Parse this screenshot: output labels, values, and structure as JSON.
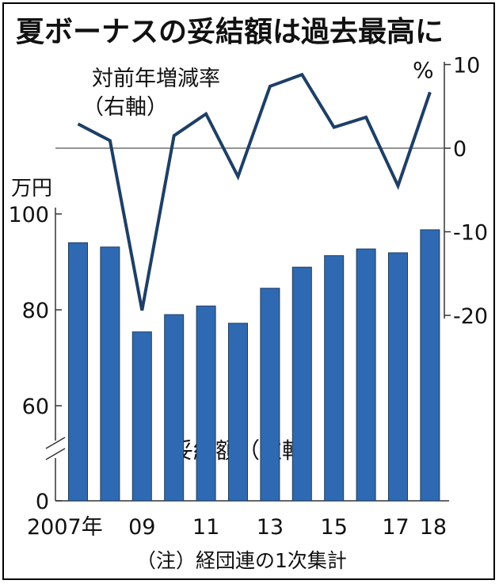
{
  "chart_data": {
    "type": "bar",
    "title": "夏ボーナスの妥結額は過去最高に",
    "note": "（注）経団連の1次集計",
    "x_tick_labels": [
      "2007年",
      "09",
      "11",
      "13",
      "15",
      "17",
      "18"
    ],
    "categories": [
      "2007",
      "2008",
      "2009",
      "2010",
      "2011",
      "2012",
      "2013",
      "2014",
      "2015",
      "2016",
      "2017",
      "2018"
    ],
    "left_axis": {
      "unit": "万円",
      "ticks": [
        "100",
        "80",
        "60",
        "0"
      ],
      "ylim": [
        60,
        100
      ],
      "axis_break": true
    },
    "right_axis": {
      "unit": "%",
      "ticks": [
        "10",
        "0",
        "-10",
        "-20"
      ],
      "ylim": [
        -20,
        10
      ]
    },
    "series": [
      {
        "name": "妥結額（左軸）",
        "type": "bar",
        "axis": "left",
        "color": "#2f69b1",
        "values": [
          94.0,
          93.1,
          75.4,
          79.0,
          80.8,
          77.2,
          84.5,
          88.9,
          91.3,
          92.7,
          91.9,
          96.7
        ]
      },
      {
        "name": "対前年増減率（右軸）",
        "type": "line",
        "axis": "right",
        "color": "#1e3f66",
        "values": [
          2.9,
          0.9,
          -19.4,
          1.5,
          4.1,
          -3.4,
          7.4,
          8.8,
          2.5,
          3.7,
          -4.5,
          6.7
        ]
      }
    ]
  }
}
